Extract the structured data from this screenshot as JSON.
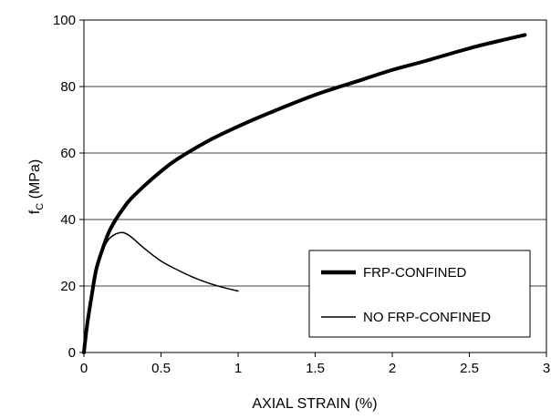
{
  "chart_data": {
    "type": "line",
    "xlabel": "AXIAL STRAIN (%)",
    "ylabel_main": "f",
    "ylabel_sub": "C",
    "ylabel_unit": " (MPa)",
    "xlim": [
      0,
      3
    ],
    "ylim": [
      0,
      100
    ],
    "x_ticks": [
      "0",
      "0.5",
      "1",
      "1.5",
      "2",
      "2.5",
      "3"
    ],
    "y_ticks": [
      "0",
      "20",
      "40",
      "60",
      "80",
      "100"
    ],
    "grid": "horizontal",
    "legend_position": "lower-right",
    "series": [
      {
        "name": "FRP-CONFINED",
        "style": "thick",
        "x": [
          0,
          0.02,
          0.05,
          0.08,
          0.12,
          0.16,
          0.2,
          0.25,
          0.3,
          0.4,
          0.5,
          0.6,
          0.8,
          1.0,
          1.2,
          1.5,
          1.8,
          2.0,
          2.2,
          2.5,
          2.7,
          2.86
        ],
        "y": [
          0,
          8,
          17,
          25,
          31,
          36,
          39.5,
          43,
          46,
          50.5,
          54.5,
          58,
          63.5,
          68,
          72,
          77.5,
          82,
          85,
          87.5,
          91.5,
          93.8,
          95.5
        ]
      },
      {
        "name": "NO FRP-CONFINED",
        "style": "thin",
        "x": [
          0,
          0.02,
          0.05,
          0.08,
          0.12,
          0.16,
          0.2,
          0.23,
          0.26,
          0.3,
          0.35,
          0.4,
          0.5,
          0.6,
          0.7,
          0.8,
          0.9,
          1.0
        ],
        "y": [
          0,
          8,
          17,
          24,
          30.5,
          34,
          35.5,
          36,
          36,
          35,
          33,
          31,
          27.5,
          25,
          22.8,
          21,
          19.6,
          18.5
        ]
      }
    ]
  }
}
